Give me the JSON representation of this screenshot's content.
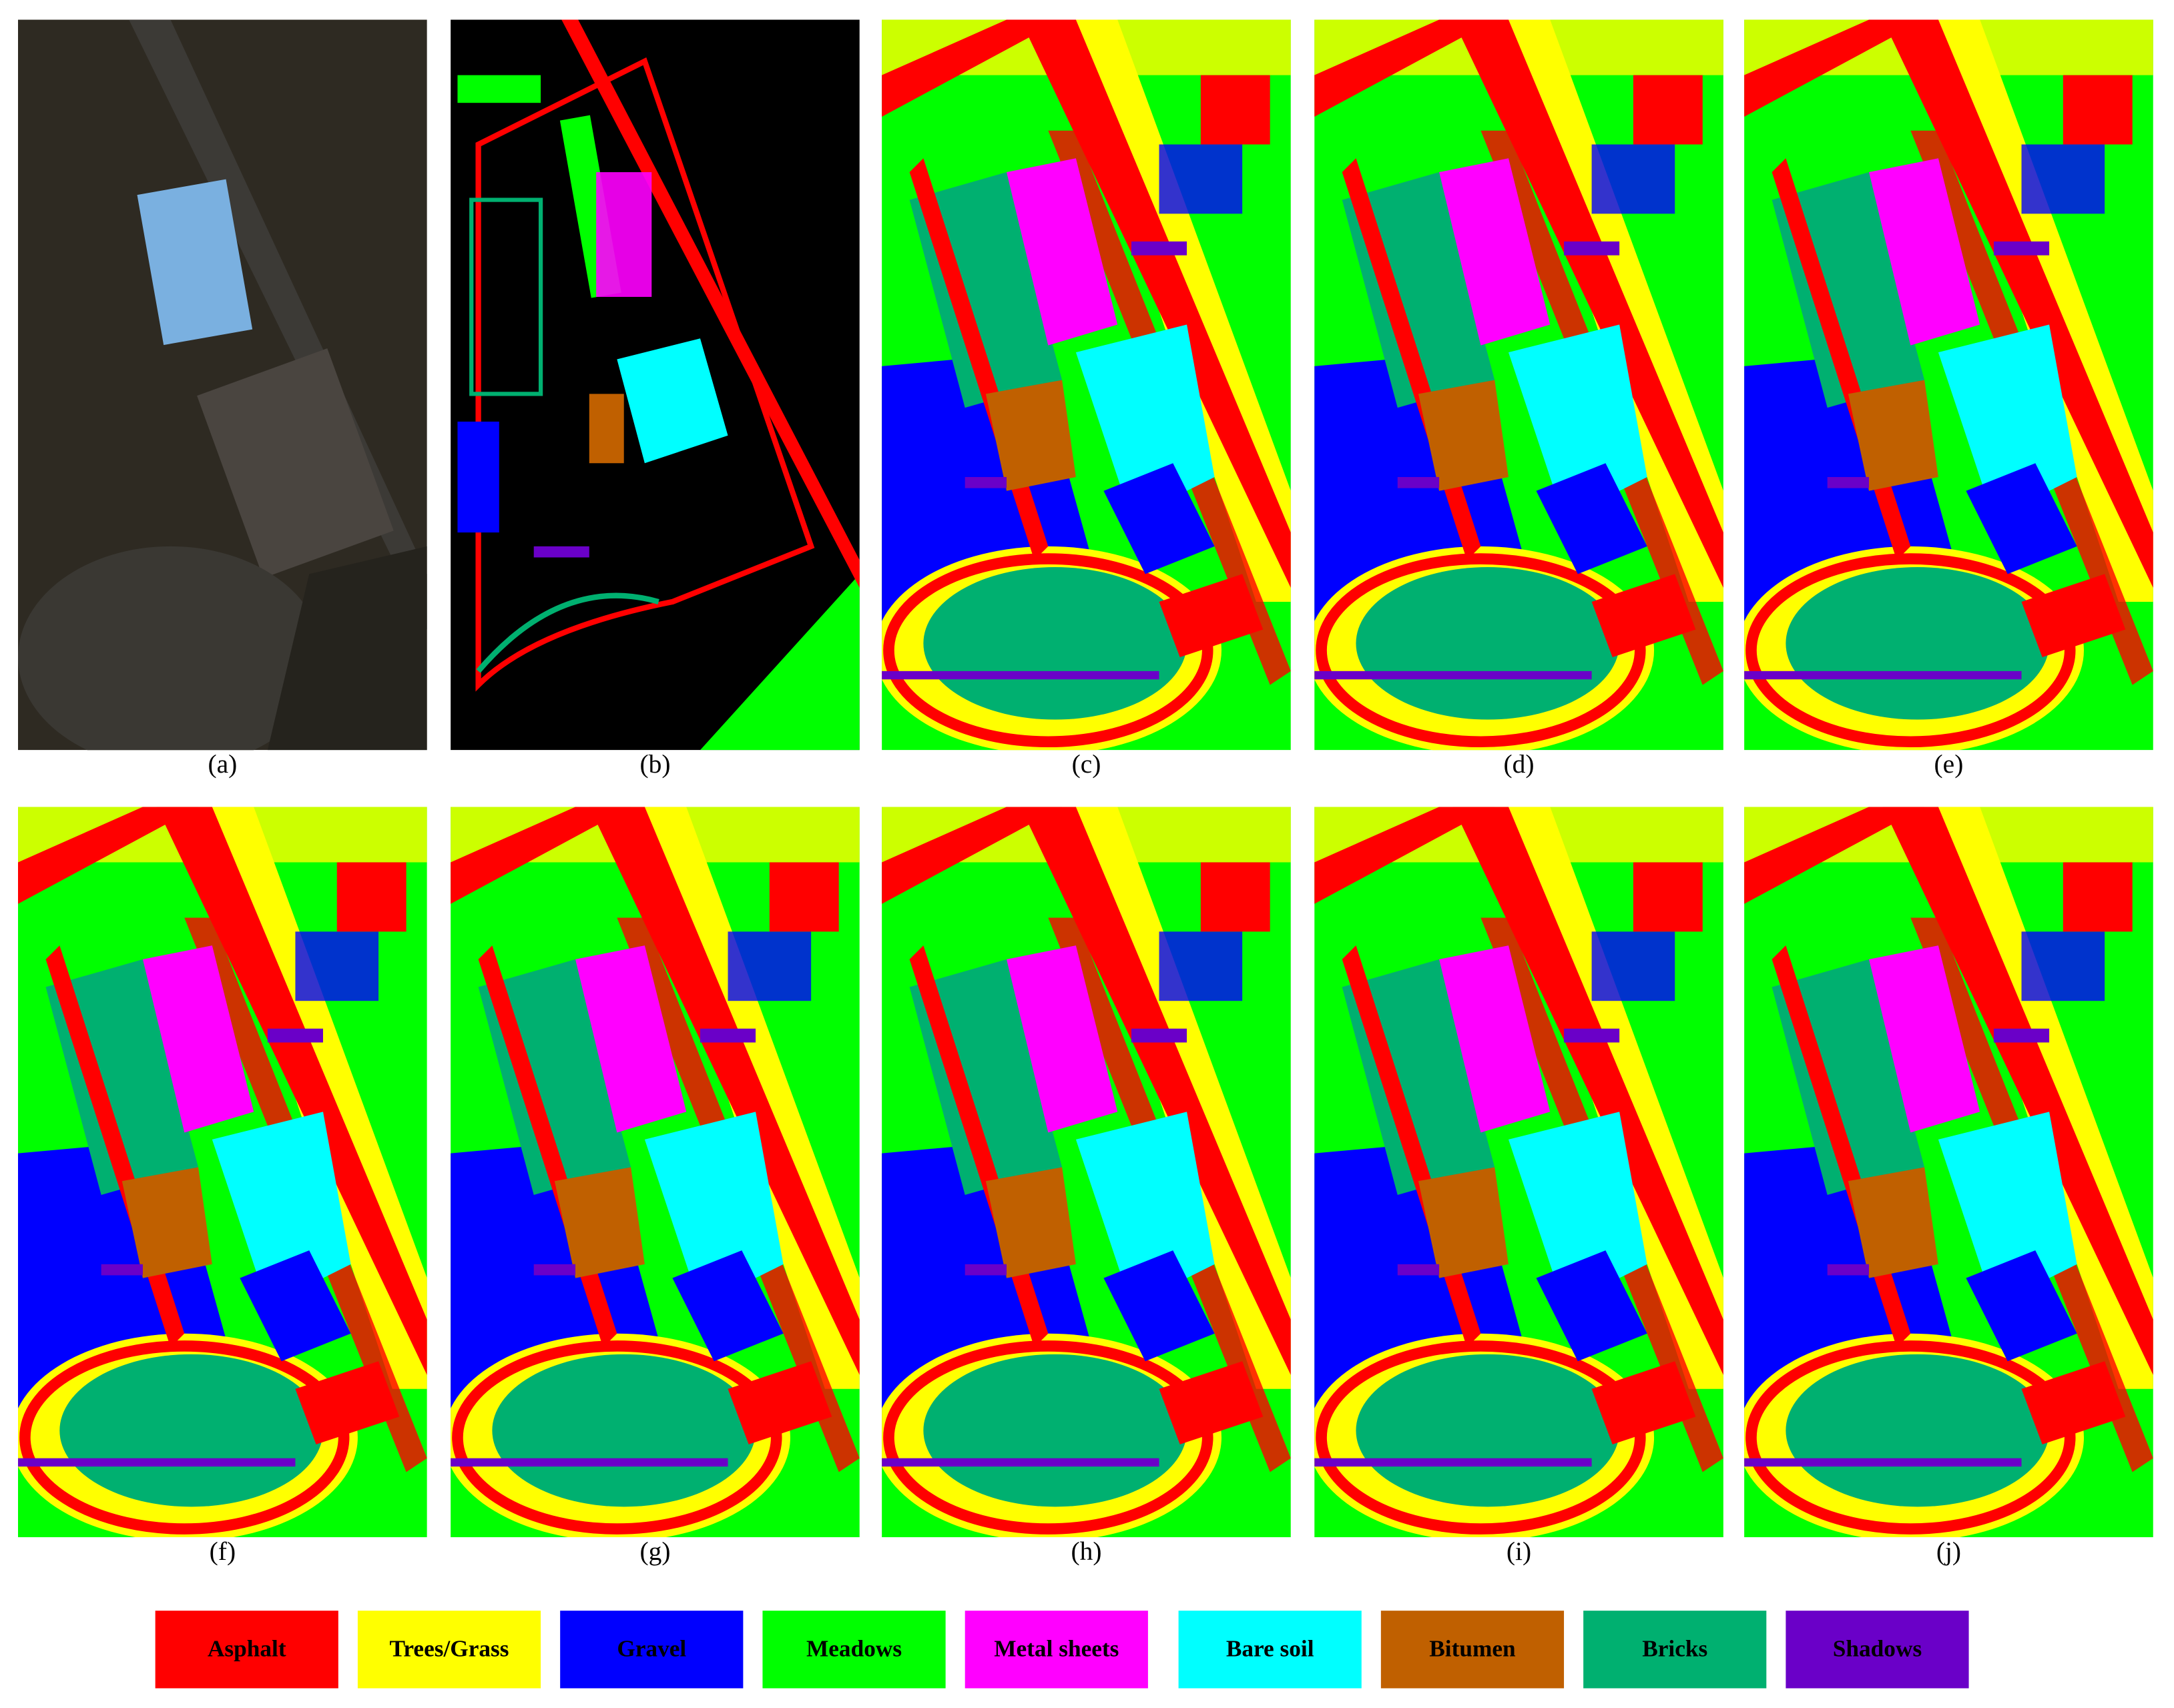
{
  "panels": [
    {
      "label": "(a)"
    },
    {
      "label": "(b)"
    },
    {
      "label": "(c)"
    },
    {
      "label": "(d)"
    },
    {
      "label": "(e)"
    },
    {
      "label": "(f)"
    },
    {
      "label": "(g)"
    },
    {
      "label": "(h)"
    },
    {
      "label": "(i)"
    },
    {
      "label": "(j)"
    }
  ],
  "legend": [
    {
      "name": "Asphalt",
      "color": "#ff0000"
    },
    {
      "name": "Trees/Grass",
      "color": "#ffff00"
    },
    {
      "name": "Gravel",
      "color": "#0000ff"
    },
    {
      "name": "Meadows",
      "color": "#00ff00"
    },
    {
      "name": "Metal sheets",
      "color": "#ff00ff"
    },
    {
      "name": "Bare soil",
      "color": "#00ffff"
    },
    {
      "name": "Bitumen",
      "color": "#c06000"
    },
    {
      "name": "Bricks",
      "color": "#00b070"
    },
    {
      "name": "Shadows",
      "color": "#6a00c8"
    }
  ]
}
